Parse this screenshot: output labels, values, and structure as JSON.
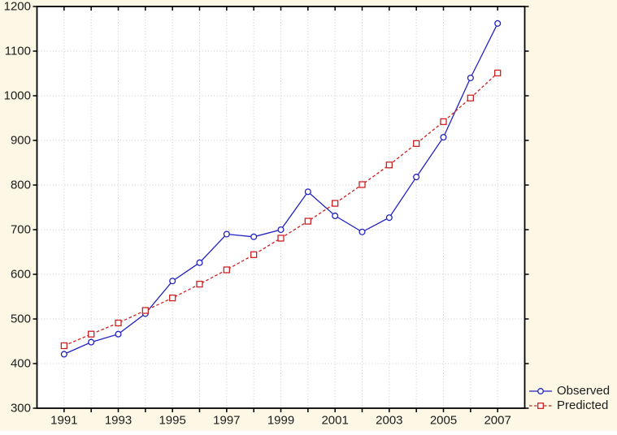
{
  "chart_data": {
    "type": "line",
    "title": "",
    "x": [
      1991,
      1992,
      1993,
      1994,
      1995,
      1996,
      1997,
      1998,
      1999,
      2000,
      2001,
      2002,
      2003,
      2004,
      2005,
      2006,
      2007
    ],
    "x_tick_labels": [
      "1991",
      "1993",
      "1995",
      "1997",
      "1999",
      "2001",
      "2003",
      "2005",
      "2007"
    ],
    "y_tick_labels": [
      "300",
      "400",
      "500",
      "600",
      "700",
      "800",
      "900",
      "1000",
      "1100",
      "1200"
    ],
    "ylim": [
      300,
      1200
    ],
    "ytick_step": 100,
    "grid": true,
    "legend_position": "bottom-right",
    "series": [
      {
        "name": "Observed",
        "color": "#2222c3",
        "marker": "circle",
        "line_style": "solid",
        "values": [
          421,
          448,
          466,
          512,
          585,
          626,
          690,
          684,
          700,
          785,
          731,
          695,
          727,
          818,
          907,
          1040,
          1162
        ]
      },
      {
        "name": "Predicted",
        "color": "#cc2222",
        "marker": "square",
        "line_style": "dashed",
        "values": [
          440,
          466,
          491,
          519,
          547,
          578,
          610,
          644,
          681,
          719,
          759,
          801,
          845,
          893,
          942,
          995,
          1051
        ]
      }
    ],
    "colors": {
      "background": "#fcf8e5",
      "plot_background": "#ffffff",
      "gridline": "#c9c9c9",
      "axis": "#000000",
      "text": "#1c1c1c"
    }
  }
}
